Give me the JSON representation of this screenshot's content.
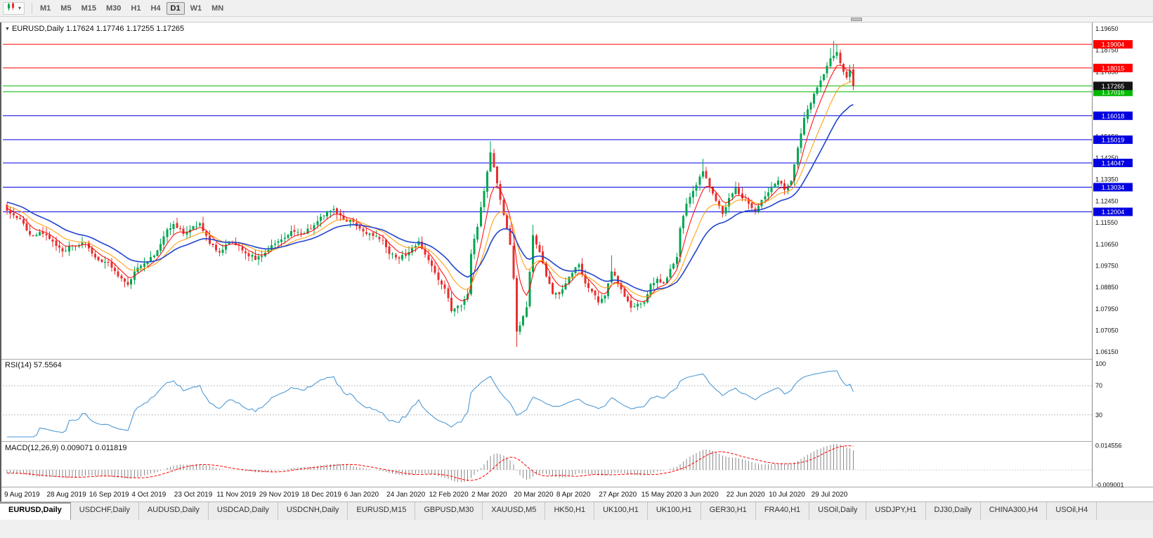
{
  "toolbar": {
    "timeframes": [
      "M1",
      "M5",
      "M15",
      "M30",
      "H1",
      "H4",
      "D1",
      "W1",
      "MN"
    ],
    "active": "D1"
  },
  "chart": {
    "info_line": "EURUSD,Daily 1.17624 1.17746 1.17255 1.17265"
  },
  "indicators": {
    "rsi_label": "RSI(14) 57.5564",
    "macd_label": "MACD(12,26,9) 0.009071 0.011819"
  },
  "tabs": {
    "active_index": 0,
    "items": [
      "EURUSD,Daily",
      "USDCHF,Daily",
      "AUDUSD,Daily",
      "USDCAD,Daily",
      "USDCNH,Daily",
      "EURUSD,M15",
      "GBPUSD,M30",
      "XAUUSD,M5",
      "HK50,H1",
      "UK100,H1",
      "UK100,H1",
      "GER30,H1",
      "FRA40,H1",
      "USOil,Daily",
      "USDJPY,H1",
      "DJ30,Daily",
      "CHINA300,H4",
      "USOil,H4"
    ]
  },
  "chart_data": {
    "type": "candlestick",
    "symbol": "EURUSD",
    "period": "Daily",
    "n_candles": 260,
    "price_range_top": 1.19886,
    "price_range_bottom": 1.05889,
    "last_close": 1.17265,
    "up_color": "#00A651",
    "down_color": "#E63030",
    "close_anchors": [
      [
        0,
        1.1205
      ],
      [
        4,
        1.117
      ],
      [
        7,
        1.1105
      ],
      [
        10,
        1.1115
      ],
      [
        13,
        1.1088
      ],
      [
        17,
        1.1035
      ],
      [
        20,
        1.106
      ],
      [
        24,
        1.1072
      ],
      [
        27,
        1.101
      ],
      [
        31,
        1.0988
      ],
      [
        34,
        1.093
      ],
      [
        37,
        1.0895
      ],
      [
        40,
        1.0968
      ],
      [
        43,
        1.099
      ],
      [
        46,
        1.104
      ],
      [
        49,
        1.1128
      ],
      [
        51,
        1.115
      ],
      [
        54,
        1.1108
      ],
      [
        57,
        1.114
      ],
      [
        59,
        1.1152
      ],
      [
        62,
        1.1068
      ],
      [
        65,
        1.103
      ],
      [
        68,
        1.1075
      ],
      [
        71,
        1.1058
      ],
      [
        74,
        1.1015
      ],
      [
        78,
        1.1016
      ],
      [
        81,
        1.1062
      ],
      [
        84,
        1.1085
      ],
      [
        87,
        1.112
      ],
      [
        90,
        1.1112
      ],
      [
        93,
        1.113
      ],
      [
        96,
        1.118
      ],
      [
        100,
        1.1212
      ],
      [
        103,
        1.1168
      ],
      [
        106,
        1.1158
      ],
      [
        109,
        1.1118
      ],
      [
        112,
        1.11
      ],
      [
        115,
        1.1082
      ],
      [
        117,
        1.1024
      ],
      [
        120,
        1.1005
      ],
      [
        123,
        1.1032
      ],
      [
        126,
        1.1078
      ],
      [
        129,
        1.0998
      ],
      [
        131,
        1.0945
      ],
      [
        134,
        1.088
      ],
      [
        136,
        1.0785
      ],
      [
        139,
        1.0808
      ],
      [
        141,
        1.0858
      ],
      [
        142,
        1.1025
      ],
      [
        144,
        1.1138
      ],
      [
        146,
        1.1288
      ],
      [
        148,
        1.1448
      ],
      [
        150,
        1.132
      ],
      [
        152,
        1.1188
      ],
      [
        154,
        1.1062
      ],
      [
        155,
        1.0922
      ],
      [
        156,
        1.07
      ],
      [
        157,
        1.0726
      ],
      [
        159,
        1.0802
      ],
      [
        161,
        1.1102
      ],
      [
        163,
        1.1032
      ],
      [
        165,
        1.093
      ],
      [
        167,
        1.0858
      ],
      [
        169,
        1.0856
      ],
      [
        171,
        1.0902
      ],
      [
        173,
        1.0946
      ],
      [
        175,
        1.098
      ],
      [
        177,
        1.0902
      ],
      [
        179,
        1.0868
      ],
      [
        181,
        1.0822
      ],
      [
        183,
        1.0852
      ],
      [
        185,
        1.0952
      ],
      [
        187,
        1.09
      ],
      [
        189,
        1.0846
      ],
      [
        191,
        1.08
      ],
      [
        193,
        1.0816
      ],
      [
        195,
        1.0822
      ],
      [
        197,
        1.0898
      ],
      [
        199,
        1.092
      ],
      [
        201,
        1.0902
      ],
      [
        203,
        1.0962
      ],
      [
        205,
        1.1012
      ],
      [
        206,
        1.1132
      ],
      [
        208,
        1.1235
      ],
      [
        210,
        1.1288
      ],
      [
        213,
        1.137
      ],
      [
        215,
        1.1302
      ],
      [
        217,
        1.1246
      ],
      [
        219,
        1.1192
      ],
      [
        221,
        1.1258
      ],
      [
        223,
        1.1302
      ],
      [
        225,
        1.1256
      ],
      [
        227,
        1.1234
      ],
      [
        229,
        1.12
      ],
      [
        231,
        1.125
      ],
      [
        233,
        1.1282
      ],
      [
        234,
        1.13
      ],
      [
        236,
        1.1332
      ],
      [
        238,
        1.1292
      ],
      [
        240,
        1.133
      ],
      [
        242,
        1.1468
      ],
      [
        244,
        1.1592
      ],
      [
        246,
        1.1656
      ],
      [
        248,
        1.172
      ],
      [
        250,
        1.1776
      ],
      [
        252,
        1.1842
      ],
      [
        254,
        1.1868
      ],
      [
        255,
        1.1822
      ],
      [
        256,
        1.1786
      ],
      [
        257,
        1.1762
      ],
      [
        258,
        1.1792
      ],
      [
        259,
        1.17265
      ]
    ],
    "wick_overrides": {
      "136": {
        "low": 1.0778
      },
      "148": {
        "high": 1.1495
      },
      "156": {
        "low": 1.0636
      },
      "161": {
        "high": 1.1147
      },
      "185": {
        "high": 1.1019
      },
      "213": {
        "high": 1.1422
      },
      "252": {
        "high": 1.1885
      },
      "253": {
        "high": 1.1915
      },
      "254": {
        "high": 1.19
      }
    },
    "warmup": {
      "count": 40,
      "from": 1.133,
      "to": 1.121
    },
    "moving_averages": [
      {
        "period": 6,
        "color": "#FF0000",
        "width": 1
      },
      {
        "period": 13,
        "color": "#FF9900",
        "width": 1
      },
      {
        "period": 24,
        "color": "#2244CC",
        "width": 1.6
      }
    ],
    "hlines": [
      {
        "price": 1.19004,
        "color": "#FF0000"
      },
      {
        "price": 1.18015,
        "color": "#FF0000"
      },
      {
        "price": 1.17016,
        "color": "#00B800"
      },
      {
        "price": 1.16018,
        "color": "#0000E0"
      },
      {
        "price": 1.15019,
        "color": "#0000E0"
      },
      {
        "price": 1.14047,
        "color": "#0000E0"
      },
      {
        "price": 1.13034,
        "color": "#0000E0"
      },
      {
        "price": 1.12004,
        "color": "#0000E0"
      }
    ],
    "current_price": {
      "price": 1.17265,
      "line_color": "#00B800",
      "tag_color": "#141414"
    },
    "price_axis_ticks": [
      1.1965,
      1.1875,
      1.1785,
      1.1695,
      1.1605,
      1.1515,
      1.1425,
      1.1335,
      1.1245,
      1.1155,
      1.1065,
      1.0975,
      1.0885,
      1.0795,
      1.0705,
      1.0615
    ],
    "x_axis": {
      "labels": [
        "9 Aug 2019",
        "28 Aug 2019",
        "16 Sep 2019",
        "4 Oct 2019",
        "23 Oct 2019",
        "11 Nov 2019",
        "29 Nov 2019",
        "18 Dec 2019",
        "6 Jan 2020",
        "24 Jan 2020",
        "12 Feb 2020",
        "2 Mar 2020",
        "20 Mar 2020",
        "8 Apr 2020",
        "27 Apr 2020",
        "15 May 2020",
        "3 Jun 2020",
        "22 Jun 2020",
        "10 Jul 2020",
        "29 Jul 2020"
      ],
      "candle_indices": [
        0,
        13,
        26,
        39,
        52,
        65,
        78,
        91,
        104,
        117,
        130,
        143,
        156,
        169,
        182,
        195,
        208,
        221,
        234,
        247
      ]
    },
    "rsi": {
      "period": 14,
      "current": 57.5564,
      "color": "#4F9AD6",
      "levels": [
        100,
        70,
        30
      ],
      "dashed_levels": [
        70,
        30
      ]
    },
    "macd": {
      "fast": 12,
      "slow": 26,
      "signal": 9,
      "current_main": 0.009071,
      "current_signal": 0.011819,
      "axis_max": 0.014556,
      "axis_min": -0.009001,
      "hist_color": "#8A8A8A",
      "signal_color": "#FF0000"
    }
  }
}
